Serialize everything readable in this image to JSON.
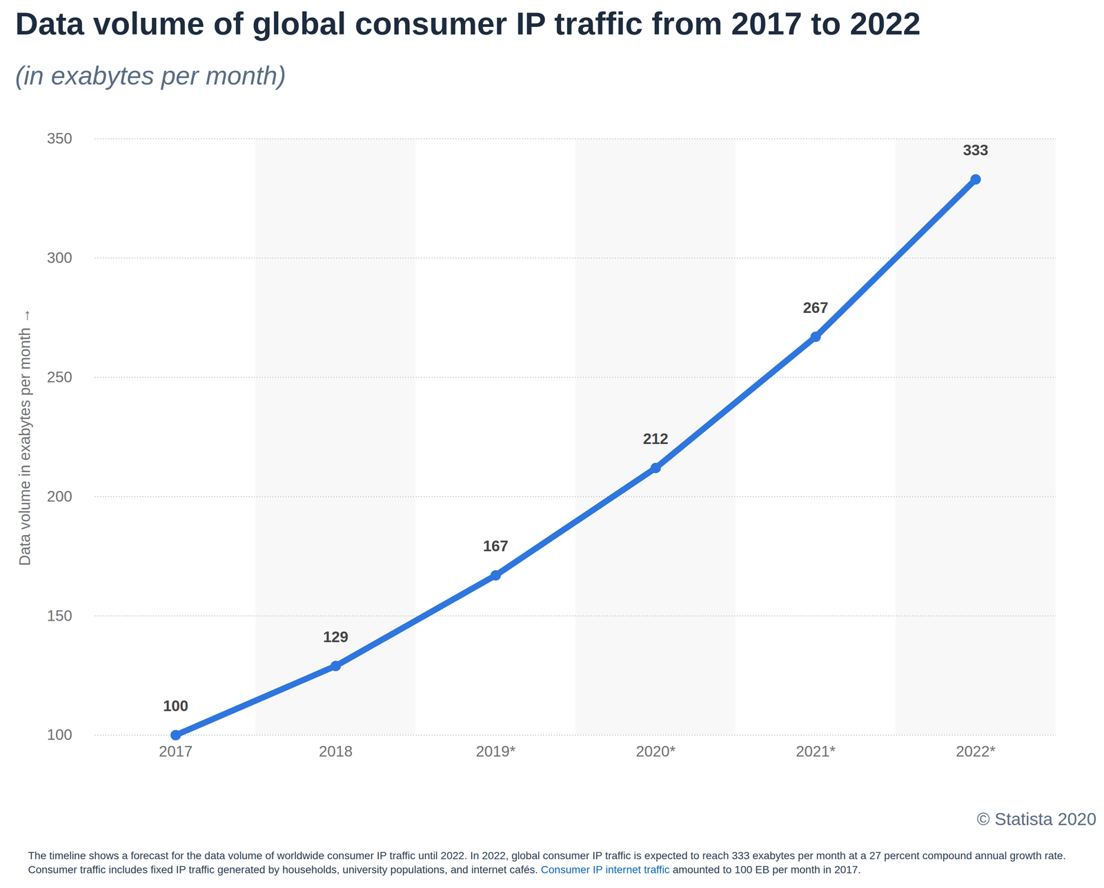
{
  "chart_data": {
    "type": "line",
    "title": "Data volume of global consumer IP traffic from 2017 to 2022",
    "subtitle": "(in exabytes per month)",
    "y_label": "Data volume in exabytes per month",
    "categories": [
      "2017",
      "2018",
      "2019*",
      "2020*",
      "2021*",
      "2022*"
    ],
    "values": [
      100,
      129,
      167,
      212,
      267,
      333
    ],
    "color": "#2e76dd",
    "marker": "circle",
    "data_labels": true,
    "ylim": [
      100,
      350
    ],
    "yticks": [
      100,
      150,
      200,
      250,
      300,
      350
    ],
    "grid": true,
    "source": "© Statista 2020",
    "caption": "The timeline shows a forecast for the data volume of worldwide consumer IP traffic until 2022. In 2022, global consumer IP traffic is expected to reach 333 exabytes per month at a 27 percent compound annual growth rate. Consumer traffic includes fixed IP traffic generated by households, university populations, and internet cafés. Consumer IP internet traffic amounted to 100 EB per month in 2017.",
    "caption_link": "Consumer IP internet traffic"
  }
}
